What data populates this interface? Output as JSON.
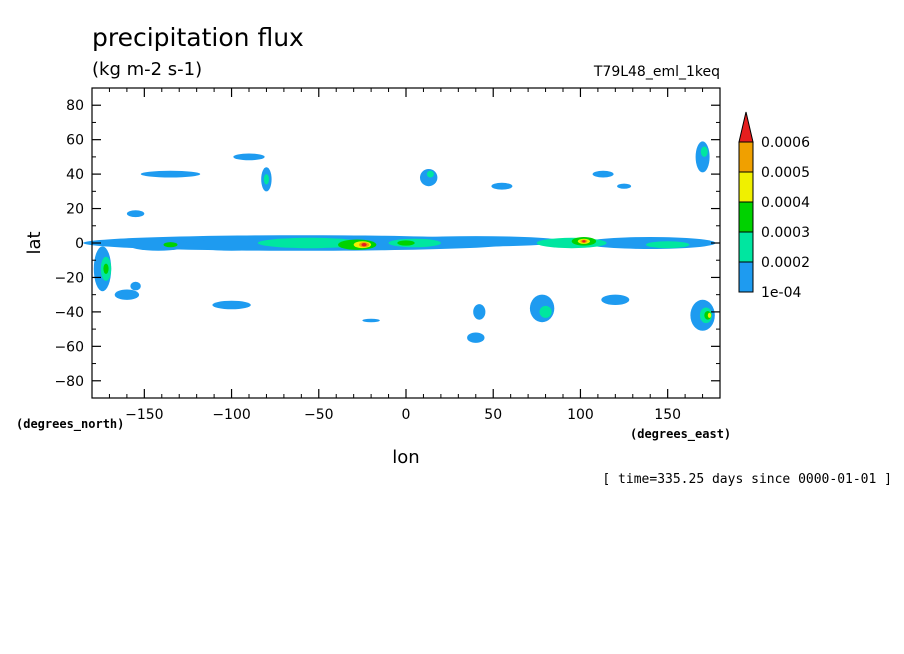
{
  "chart_data": {
    "type": "heatmap",
    "title": "precipitation flux",
    "units": "(kg m-2 s-1)",
    "run_label": "T79L48_eml_1keq",
    "xlabel": "lon",
    "ylabel": "lat",
    "x_units": "(degrees_east)",
    "y_units": "(degrees_north)",
    "xlim": [
      -180,
      180
    ],
    "ylim": [
      -90,
      90
    ],
    "x_ticks": [
      -150,
      -100,
      -50,
      0,
      50,
      100,
      150
    ],
    "y_ticks": [
      80,
      60,
      40,
      20,
      0,
      -20,
      -40,
      -60,
      -80
    ],
    "footnote": "[ time=335.25 days since 0000-01-01 ]",
    "colorbar": {
      "levels": [
        "1e-04",
        "0.0002",
        "0.0003",
        "0.0004",
        "0.0005",
        "0.0006"
      ],
      "colors": [
        "#1e9bf0",
        "#00e6a0",
        "#00d200",
        "#f0f000",
        "#f0a000",
        "#e61e1e"
      ],
      "extend": "max"
    },
    "features": [
      {
        "lon": -60,
        "lat": 0,
        "w": 250,
        "h": 9,
        "level": 1
      },
      {
        "lon": 40,
        "lat": 1,
        "w": 100,
        "h": 6,
        "level": 1
      },
      {
        "lon": 140,
        "lat": 0,
        "w": 75,
        "h": 7,
        "level": 1
      },
      {
        "lon": -142,
        "lat": -1,
        "w": 35,
        "h": 7,
        "level": 1
      },
      {
        "lon": -100,
        "lat": -1,
        "w": 45,
        "h": 7,
        "level": 1
      },
      {
        "lon": -55,
        "lat": 0,
        "w": 60,
        "h": 6,
        "level": 2
      },
      {
        "lon": -28,
        "lat": -1,
        "w": 22,
        "h": 6,
        "level": 3
      },
      {
        "lon": -25,
        "lat": -1,
        "w": 10,
        "h": 4,
        "level": 4
      },
      {
        "lon": -24,
        "lat": -1,
        "w": 6,
        "h": 3,
        "level": 5
      },
      {
        "lon": -24,
        "lat": -1,
        "w": 3,
        "h": 2,
        "level": 6
      },
      {
        "lon": 5,
        "lat": 0,
        "w": 30,
        "h": 5,
        "level": 2
      },
      {
        "lon": 0,
        "lat": 0,
        "w": 10,
        "h": 3,
        "level": 3
      },
      {
        "lon": 95,
        "lat": 0,
        "w": 40,
        "h": 6,
        "level": 2
      },
      {
        "lon": 102,
        "lat": 1,
        "w": 14,
        "h": 5,
        "level": 3
      },
      {
        "lon": 102,
        "lat": 1,
        "w": 7,
        "h": 3,
        "level": 4
      },
      {
        "lon": 102,
        "lat": 1,
        "w": 4,
        "h": 2,
        "level": 5
      },
      {
        "lon": 102,
        "lat": 1,
        "w": 2,
        "h": 1.4,
        "level": 6
      },
      {
        "lon": -135,
        "lat": -1,
        "w": 8,
        "h": 3,
        "level": 3
      },
      {
        "lon": 150,
        "lat": -1,
        "w": 25,
        "h": 4,
        "level": 2
      },
      {
        "lon": -174,
        "lat": -15,
        "w": 10,
        "h": 26,
        "level": 1
      },
      {
        "lon": -172,
        "lat": -15,
        "w": 6,
        "h": 14,
        "level": 2
      },
      {
        "lon": -172,
        "lat": -15,
        "w": 3,
        "h": 6,
        "level": 3
      },
      {
        "lon": 170,
        "lat": -42,
        "w": 14,
        "h": 18,
        "level": 1
      },
      {
        "lon": 172,
        "lat": -42,
        "w": 7,
        "h": 9,
        "level": 2
      },
      {
        "lon": 173,
        "lat": -42,
        "w": 4,
        "h": 5,
        "level": 3
      },
      {
        "lon": 174,
        "lat": -42,
        "w": 2,
        "h": 3,
        "level": 4
      },
      {
        "lon": 170,
        "lat": 50,
        "w": 8,
        "h": 18,
        "level": 1
      },
      {
        "lon": 171,
        "lat": 53,
        "w": 4,
        "h": 6,
        "level": 2
      },
      {
        "lon": 78,
        "lat": -38,
        "w": 14,
        "h": 16,
        "level": 1
      },
      {
        "lon": 80,
        "lat": -40,
        "w": 7,
        "h": 7,
        "level": 2
      },
      {
        "lon": -80,
        "lat": 37,
        "w": 6,
        "h": 14,
        "level": 1
      },
      {
        "lon": -80,
        "lat": 37,
        "w": 3,
        "h": 6,
        "level": 2
      },
      {
        "lon": -90,
        "lat": 50,
        "w": 18,
        "h": 4,
        "level": 1
      },
      {
        "lon": -135,
        "lat": 40,
        "w": 34,
        "h": 4,
        "level": 1
      },
      {
        "lon": 13,
        "lat": 38,
        "w": 10,
        "h": 10,
        "level": 1
      },
      {
        "lon": 14,
        "lat": 40,
        "w": 4,
        "h": 4,
        "level": 2
      },
      {
        "lon": -100,
        "lat": -36,
        "w": 22,
        "h": 5,
        "level": 1
      },
      {
        "lon": 42,
        "lat": -40,
        "w": 7,
        "h": 9,
        "level": 1
      },
      {
        "lon": 120,
        "lat": -33,
        "w": 16,
        "h": 6,
        "level": 1
      },
      {
        "lon": 40,
        "lat": -55,
        "w": 10,
        "h": 6,
        "level": 1
      },
      {
        "lon": -20,
        "lat": -45,
        "w": 10,
        "h": 2,
        "level": 1
      },
      {
        "lon": 113,
        "lat": 40,
        "w": 12,
        "h": 4,
        "level": 1
      },
      {
        "lon": 55,
        "lat": 33,
        "w": 12,
        "h": 4,
        "level": 1
      },
      {
        "lon": -155,
        "lat": 17,
        "w": 10,
        "h": 4,
        "level": 1
      },
      {
        "lon": -160,
        "lat": -30,
        "w": 14,
        "h": 6,
        "level": 1
      },
      {
        "lon": 125,
        "lat": 33,
        "w": 8,
        "h": 3,
        "level": 1
      },
      {
        "lon": -155,
        "lat": -25,
        "w": 6,
        "h": 5,
        "level": 1
      }
    ]
  }
}
